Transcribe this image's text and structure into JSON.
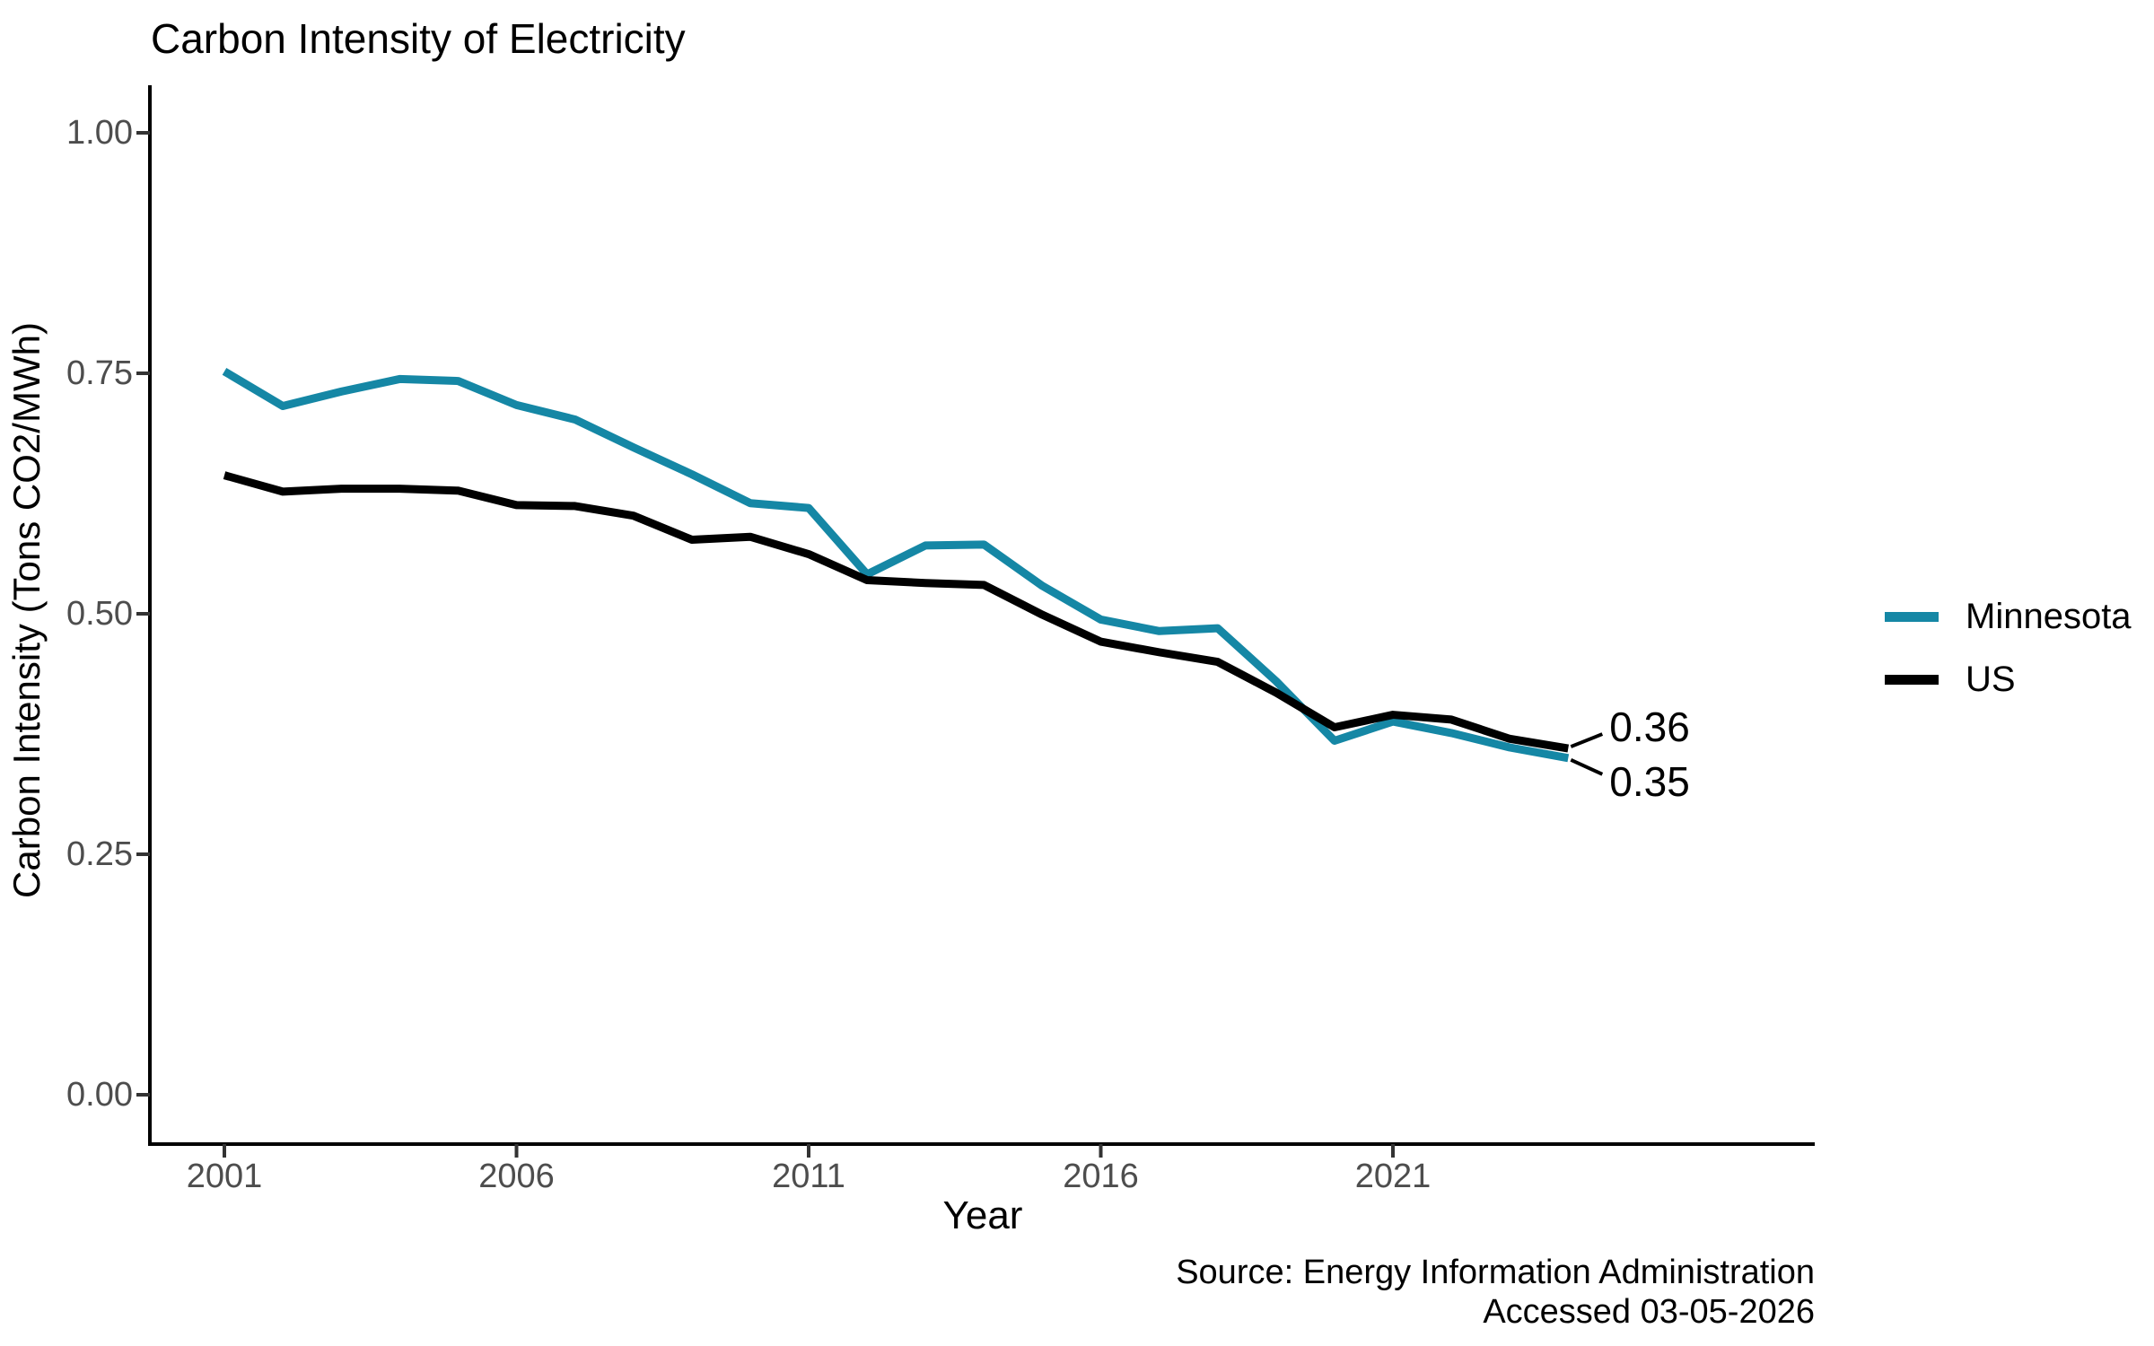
{
  "chart": {
    "title": "Carbon Intensity of Electricity",
    "y_axis": {
      "title": "Carbon Intensity (Tons CO2/MWh)",
      "tick_labels": [
        "1.00",
        "0.75",
        "0.50",
        "0.25",
        "0.00"
      ],
      "tick_values": [
        1.0,
        0.75,
        0.5,
        0.25,
        0.0
      ]
    },
    "x_axis": {
      "title": "Year",
      "tick_labels": [
        "2001",
        "2006",
        "2011",
        "2016",
        "2021"
      ],
      "tick_values": [
        2001,
        2006,
        2011,
        2016,
        2021
      ]
    },
    "legend": [
      {
        "label": "Minnesota",
        "color": "#1587A5"
      },
      {
        "label": "US",
        "color": "#000000"
      }
    ],
    "annotations": {
      "us_end_label": "0.36",
      "mn_end_label": "0.35"
    },
    "source": {
      "line1": "Source: Energy Information Administration",
      "line2": "Accessed 03-05-2026"
    },
    "colors": {
      "minnesota_line": "#1587A5",
      "us_line": "#000000",
      "axis_line": "#000000",
      "tick_text": "#4d4d4d",
      "background": "#ffffff"
    }
  },
  "chart_data": {
    "type": "line",
    "title": "Carbon Intensity of Electricity",
    "xlabel": "Year",
    "ylabel": "Carbon Intensity (Tons CO2/MWh)",
    "x": [
      2001,
      2002,
      2003,
      2004,
      2005,
      2006,
      2007,
      2008,
      2009,
      2010,
      2011,
      2012,
      2013,
      2014,
      2015,
      2016,
      2017,
      2018,
      2019,
      2020,
      2021,
      2022,
      2023,
      2024
    ],
    "series": [
      {
        "name": "Minnesota",
        "color": "#1587A5",
        "values": [
          0.752,
          0.716,
          0.731,
          0.744,
          0.742,
          0.717,
          0.702,
          0.673,
          0.645,
          0.615,
          0.61,
          0.541,
          0.571,
          0.572,
          0.529,
          0.494,
          0.482,
          0.485,
          0.43,
          0.368,
          0.388,
          0.376,
          0.361,
          0.35
        ]
      },
      {
        "name": "US",
        "color": "#000000",
        "values": [
          0.644,
          0.627,
          0.63,
          0.63,
          0.628,
          0.613,
          0.612,
          0.602,
          0.577,
          0.58,
          0.562,
          0.535,
          0.532,
          0.53,
          0.499,
          0.471,
          0.46,
          0.45,
          0.418,
          0.382,
          0.395,
          0.39,
          0.37,
          0.36
        ]
      }
    ],
    "xlim": [
      2001,
      2024
    ],
    "ylim": [
      0.0,
      1.0
    ],
    "yticks": [
      0.0,
      0.25,
      0.5,
      0.75,
      1.0
    ],
    "xticks": [
      2001,
      2006,
      2011,
      2016,
      2021
    ],
    "grid": false,
    "legend_position": "right",
    "end_labels": [
      {
        "series": "US",
        "text": "0.36"
      },
      {
        "series": "Minnesota",
        "text": "0.35"
      }
    ]
  }
}
